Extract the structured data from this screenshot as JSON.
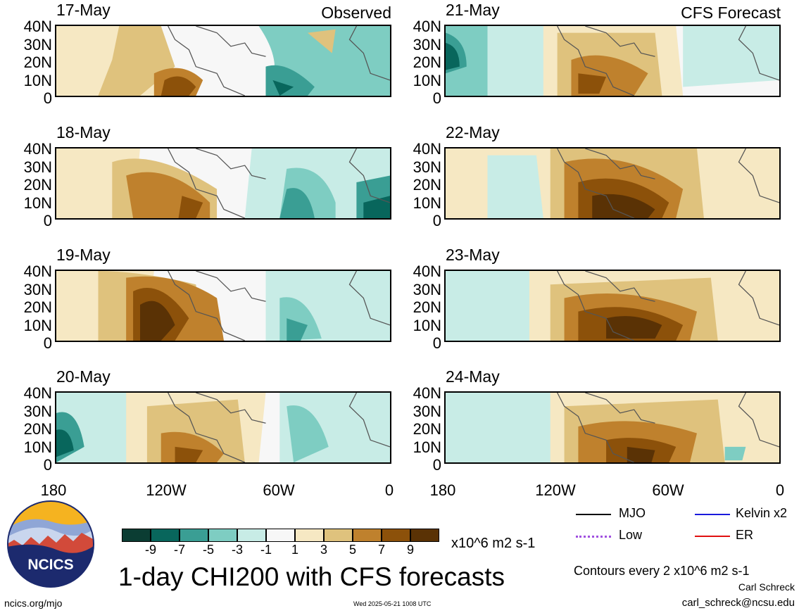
{
  "left_panels": [
    {
      "date": "17-May",
      "corner": "Observed"
    },
    {
      "date": "18-May",
      "corner": ""
    },
    {
      "date": "19-May",
      "corner": ""
    },
    {
      "date": "20-May",
      "corner": ""
    }
  ],
  "right_panels": [
    {
      "date": "21-May",
      "corner": "CFS Forecast"
    },
    {
      "date": "22-May",
      "corner": ""
    },
    {
      "date": "23-May",
      "corner": ""
    },
    {
      "date": "24-May",
      "corner": ""
    }
  ],
  "lat_labels": [
    "40N",
    "30N",
    "20N",
    "10N",
    "0"
  ],
  "lon_labels": [
    "180",
    "120W",
    "60W",
    "0"
  ],
  "colorbar": {
    "ticks": [
      "-9",
      "-7",
      "-5",
      "-3",
      "-1",
      "1",
      "3",
      "5",
      "7",
      "9"
    ],
    "colors": [
      "#0b3d33",
      "#08665c",
      "#3a9e94",
      "#7ecdc2",
      "#c8ece6",
      "#f7f7f7",
      "#f6e8c3",
      "#dfc27d",
      "#bf812d",
      "#8c510a",
      "#5a3205"
    ],
    "units": "x10^6 m2 s-1"
  },
  "title": "1-day CHI200 with CFS forecasts",
  "logo": {
    "text": "NCICS"
  },
  "legend": {
    "mjo": "MJO",
    "kelvin": "Kelvin x2",
    "low": "Low",
    "er": "ER",
    "colors": {
      "mjo": "#000000",
      "kelvin": "#1a1adc",
      "low": "#a050e0",
      "er": "#e01010"
    }
  },
  "contours_note": "Contours every 2 x10^6 m2 s-1",
  "author": "Carl Schreck",
  "email": "carl_schreck@ncsu.edu",
  "url": "ncics.org/mjo",
  "timestamp": "Wed 2025-05-21 1008 UTC"
}
